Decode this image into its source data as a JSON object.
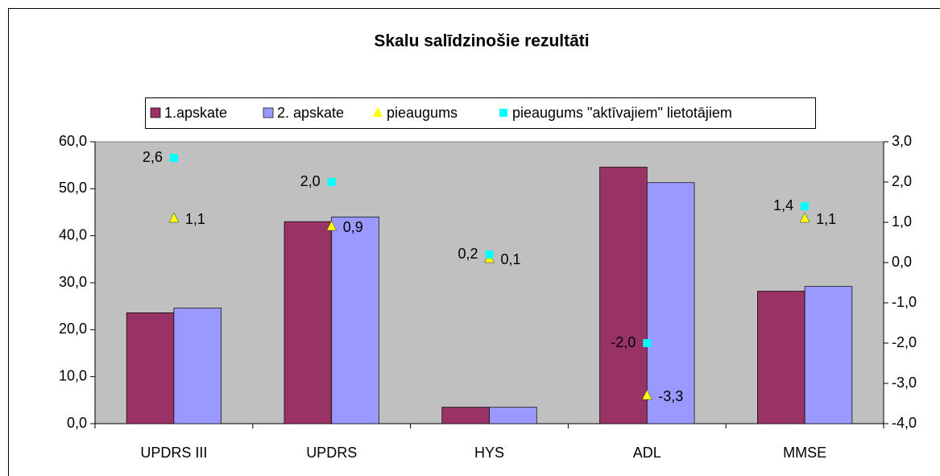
{
  "chart_data": {
    "type": "bar",
    "title": "Skalu salīdzinošie rezultāti",
    "categories": [
      "UPDRS III",
      "UPDRS",
      "HYS",
      "ADL",
      "MMSE"
    ],
    "series": [
      {
        "name": "1.apskate",
        "type": "bar",
        "color": "#993366",
        "values": [
          23.6,
          43.0,
          3.5,
          54.6,
          28.2
        ]
      },
      {
        "name": "2. apskate",
        "type": "bar",
        "color": "#9999ff",
        "values": [
          24.6,
          44.0,
          3.5,
          51.3,
          29.2
        ]
      },
      {
        "name": "pieaugums",
        "type": "scatter",
        "marker": "triangle",
        "axis": "y2",
        "color": "#ffff00",
        "values": [
          1.1,
          0.9,
          0.1,
          -3.3,
          1.1
        ],
        "value_labels": [
          "1,1",
          "0,9",
          "0,1",
          "-3,3",
          "1,1"
        ]
      },
      {
        "name": "pieaugums \"aktīvajiem\" lietotājiem",
        "type": "scatter",
        "marker": "square",
        "axis": "y2",
        "color": "#00ffff",
        "values": [
          2.6,
          2.0,
          0.2,
          -2.0,
          1.4
        ],
        "value_labels": [
          "2,6",
          "2,0",
          "0,2",
          "-2,0",
          "1,4"
        ]
      }
    ],
    "ylim": [
      0,
      60
    ],
    "yticks": [
      {
        "value": 0,
        "label": "0,0"
      },
      {
        "value": 10,
        "label": "10,0"
      },
      {
        "value": 20,
        "label": "20,0"
      },
      {
        "value": 30,
        "label": "30,0"
      },
      {
        "value": 40,
        "label": "40,0"
      },
      {
        "value": 50,
        "label": "50,0"
      },
      {
        "value": 60,
        "label": "60,0"
      }
    ],
    "y2lim": [
      -4,
      3
    ],
    "y2ticks": [
      {
        "value": -4,
        "label": "-4,0"
      },
      {
        "value": -3,
        "label": "-3,0"
      },
      {
        "value": -2,
        "label": "-2,0"
      },
      {
        "value": -1,
        "label": "-1,0"
      },
      {
        "value": 0,
        "label": "0,0"
      },
      {
        "value": 1,
        "label": "1,0"
      },
      {
        "value": 2,
        "label": "2,0"
      },
      {
        "value": 3,
        "label": "3,0"
      }
    ],
    "legend": "top",
    "plot_background": "#c0c0c0"
  }
}
